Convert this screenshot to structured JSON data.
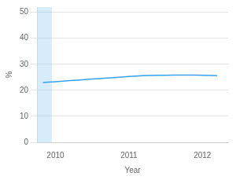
{
  "chart_data": {
    "type": "line",
    "x": [
      2009.83,
      2009.9,
      2010.0,
      2010.1,
      2010.2,
      2010.3,
      2010.4,
      2010.5,
      2010.6,
      2010.7,
      2010.8,
      2010.9,
      2011.0,
      2011.1,
      2011.2,
      2011.3,
      2011.4,
      2011.5,
      2011.6,
      2011.7,
      2011.8,
      2011.9,
      2012.0,
      2012.1,
      2012.2
    ],
    "values": [
      23.0,
      23.1,
      23.3,
      23.5,
      23.7,
      23.9,
      24.1,
      24.3,
      24.5,
      24.7,
      24.9,
      25.1,
      25.3,
      25.5,
      25.6,
      25.7,
      25.75,
      25.8,
      25.85,
      25.88,
      25.85,
      25.82,
      25.8,
      25.7,
      25.6
    ],
    "span": [
      2009.75,
      2009.95
    ],
    "x_label": "Year",
    "y_label": "%",
    "xlim": [
      2009.75,
      2012.35
    ],
    "ylim": [
      0,
      52
    ],
    "xticks": [
      2010,
      2011,
      2012
    ],
    "yticks": [
      0,
      10,
      20,
      30,
      40,
      50
    ],
    "grid": "y"
  }
}
